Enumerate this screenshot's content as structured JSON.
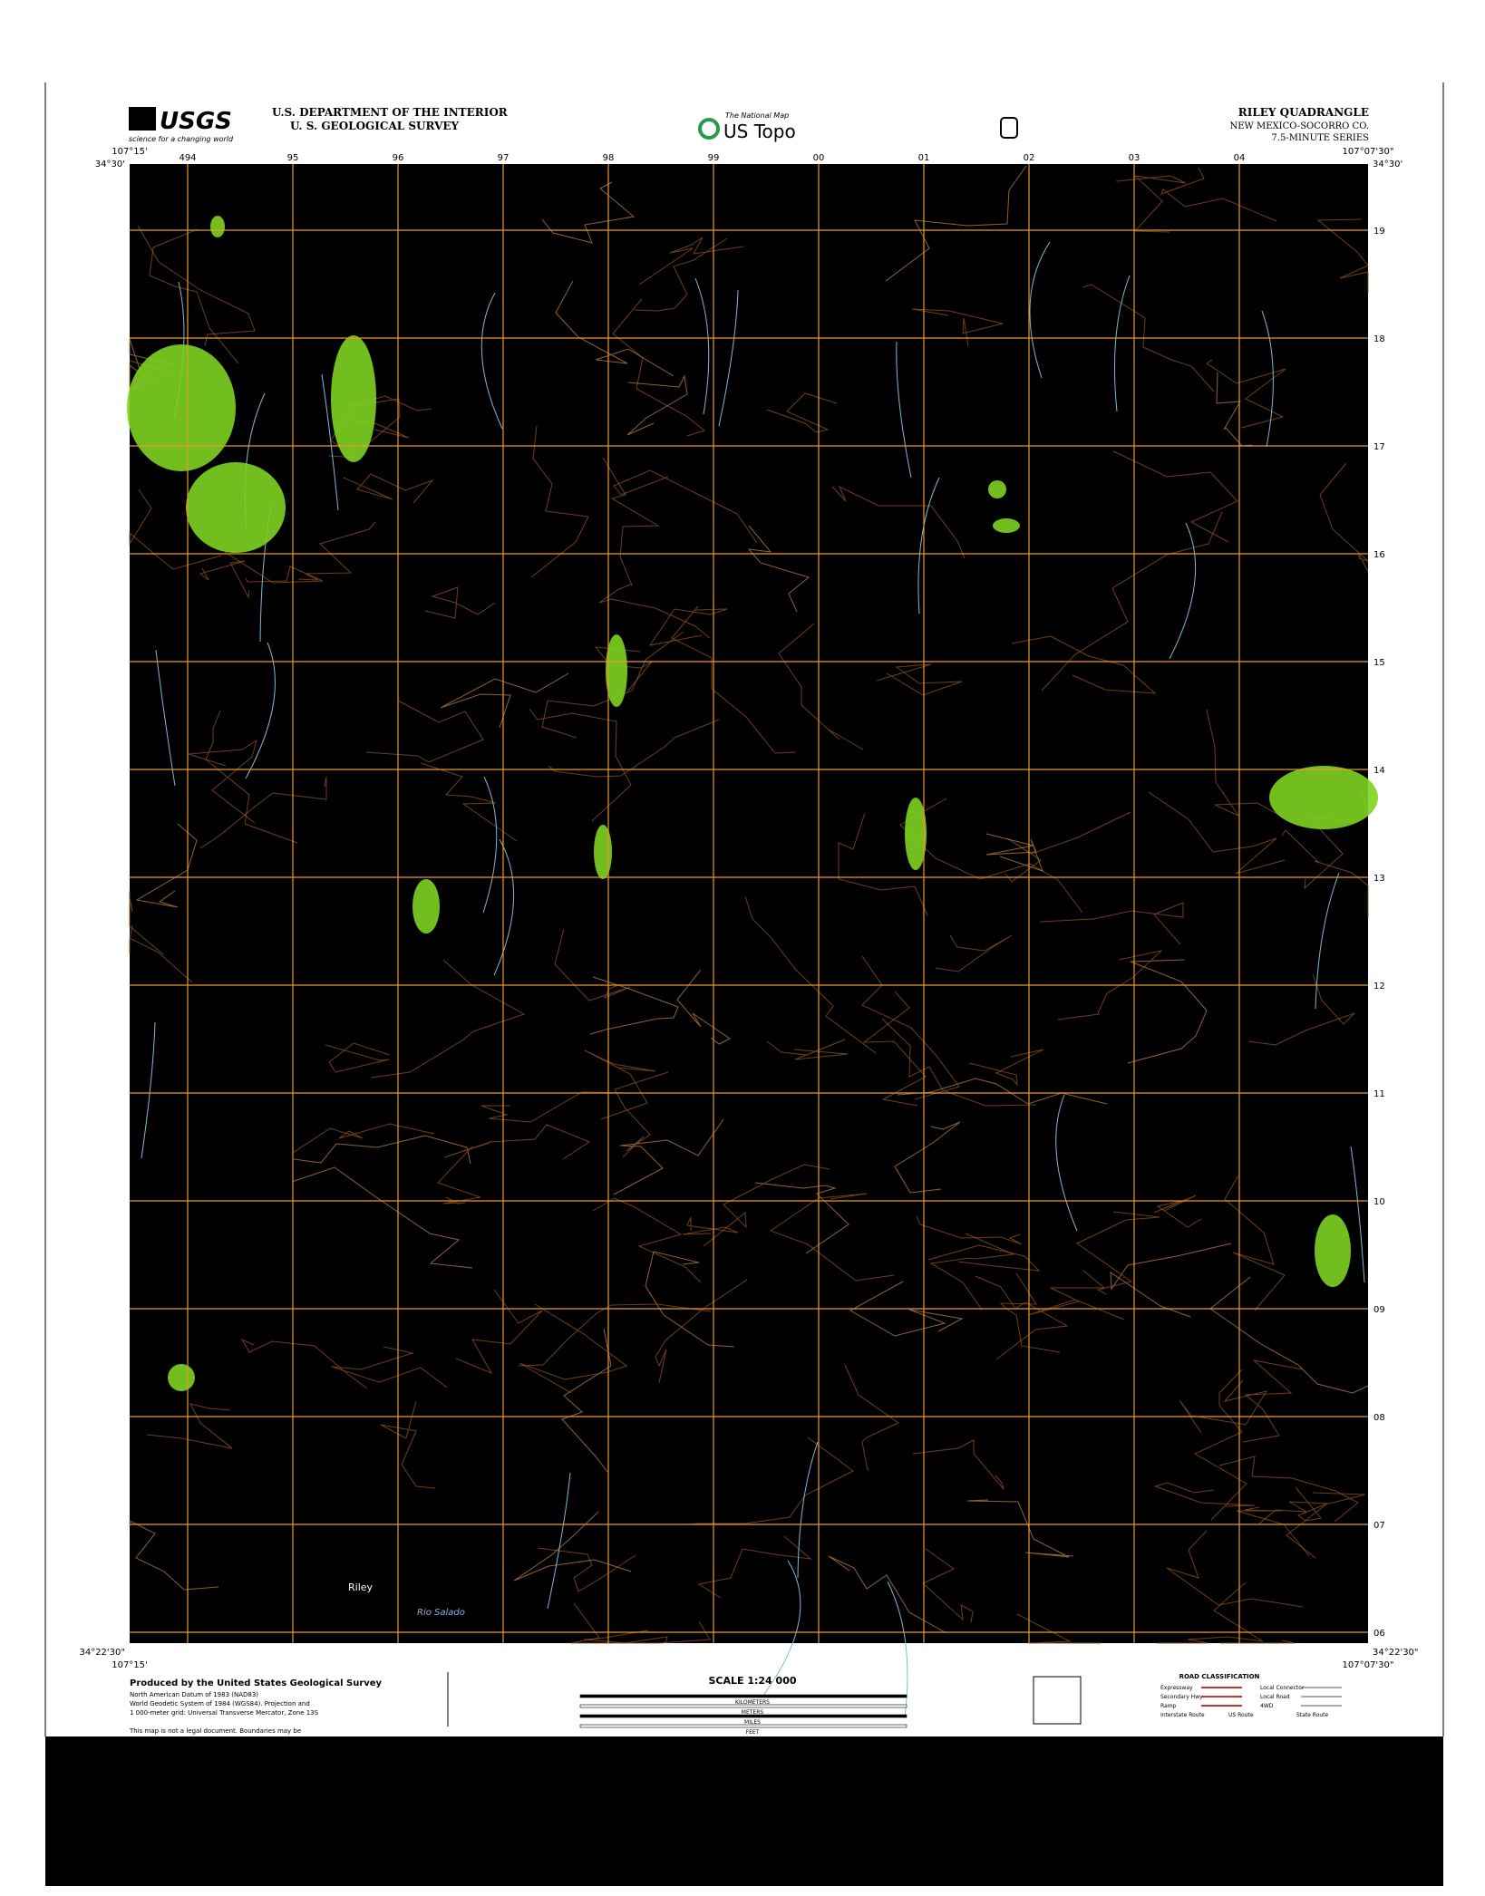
{
  "header": {
    "logo": "USGS",
    "tagline": "science for a changing world",
    "agency": "U.S. DEPARTMENT OF THE INTERIOR",
    "survey": "U. S. GEOLOGICAL SURVEY",
    "national_map": "The National Map",
    "us_topo": "US Topo",
    "quad_title": "RILEY QUADRANGLE",
    "state_county": "NEW MEXICO-SOCORRO CO.",
    "series": "7.5-MINUTE SERIES"
  },
  "corners": {
    "nw_lon": "107°15'",
    "nw_lat": "34°30'",
    "ne_lon": "107°07'30\"",
    "ne_lat": "34°30'",
    "sw_lon": "107°15'",
    "sw_lat": "34°22'30\"",
    "se_lon": "107°07'30\"",
    "se_lat": "34°22'30\""
  },
  "grid": {
    "top": [
      "494",
      "95",
      "96",
      "97",
      "98",
      "99",
      "00",
      "01",
      "02",
      "03",
      "04"
    ],
    "right": [
      "19",
      "18",
      "17",
      "16",
      "15",
      "14",
      "13",
      "12",
      "11",
      "10",
      "09",
      "08",
      "07",
      "06"
    ]
  },
  "map_labels": {
    "town": "Riley",
    "river": "Rio Salado"
  },
  "footer": {
    "producer": "Produced by the United States Geological Survey",
    "datum": "North American Datum of 1983 (NAD83)",
    "geodetic": "World Geodetic System of 1984 (WGS84). Projection and",
    "grid_note": "1 000-meter grid: Universal Transverse Mercator, Zone 13S",
    "disclaimer": "This map is not a legal document. Boundaries may be",
    "scale": "SCALE 1:24 000",
    "units": [
      "KILOMETERS",
      "METERS",
      "MILES",
      "FEET"
    ],
    "road_title": "ROAD CLASSIFICATION",
    "roads": [
      "Expressway",
      "Secondary Hwy",
      "Ramp",
      "Local Connector",
      "Local Road",
      "4WD",
      "Interstate Route",
      "US Route",
      "State Route"
    ]
  }
}
